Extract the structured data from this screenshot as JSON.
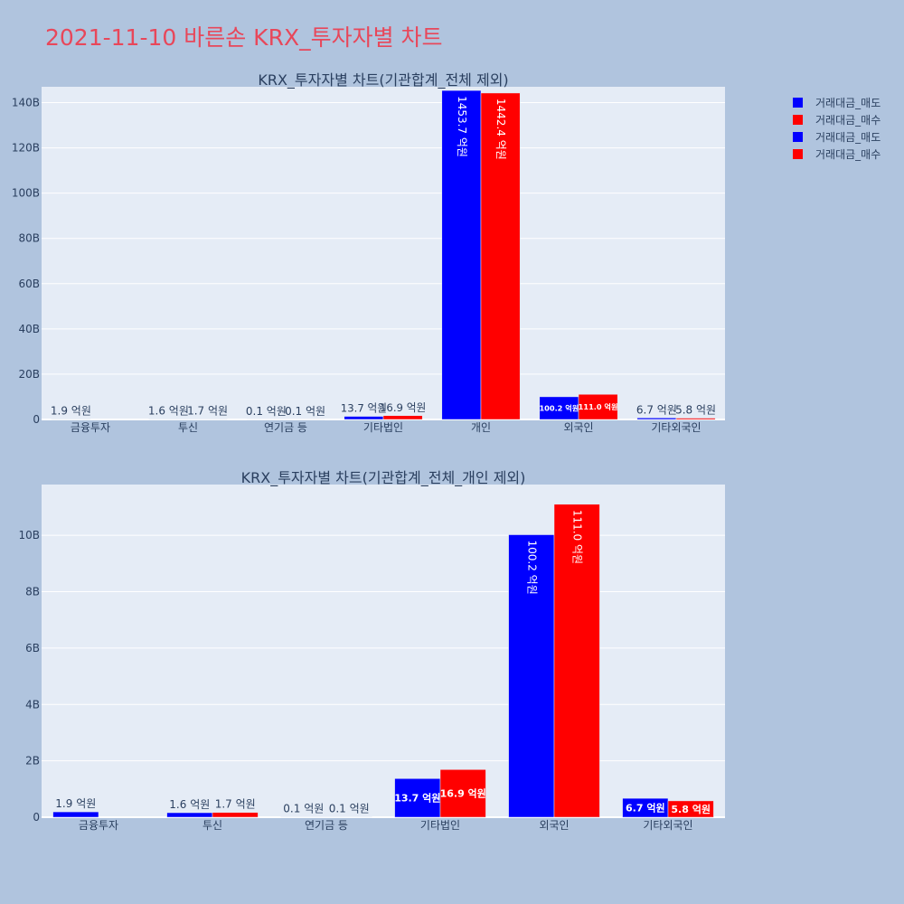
{
  "title": "2021-11-10 바른손 KRX_투자자별 차트",
  "colors": {
    "background": "#b0c4de",
    "plot_bg": "#e5ecf6",
    "title": "#e8475a",
    "sell": "#0000ff",
    "buy": "#ff0000",
    "text": "#2a3f5f"
  },
  "legend": [
    {
      "label": "거래대금_매도",
      "color": "#0000ff"
    },
    {
      "label": "거래대금_매수",
      "color": "#ff0000"
    },
    {
      "label": "거래대금_매도",
      "color": "#0000ff"
    },
    {
      "label": "거래대금_매수",
      "color": "#ff0000"
    }
  ],
  "chart_data": [
    {
      "type": "bar",
      "title": "KRX_투자자별 차트(기관합계_전체 제외)",
      "categories": [
        "금융투자",
        "투신",
        "연기금 등",
        "기타법인",
        "개인",
        "외국인",
        "기타외국인"
      ],
      "series": [
        {
          "name": "거래대금_매도",
          "color": "#0000ff",
          "values": [
            190000000,
            160000000,
            10000000,
            1370000000,
            145370000000,
            10020000000,
            670000000
          ],
          "labels": [
            "1.9 억원",
            "1.6 억원",
            "0.1 억원",
            "13.7 억원",
            "1453.7 억원",
            "100.2 억원",
            "6.7 억원"
          ]
        },
        {
          "name": "거래대금_매수",
          "color": "#ff0000",
          "values": [
            0,
            170000000,
            10000000,
            1690000000,
            144240000000,
            11100000000,
            580000000
          ],
          "labels": [
            "",
            "1.7 억원",
            "0.1 억원",
            "16.9 억원",
            "1442.4 억원",
            "111.0 억원",
            "5.8 억원"
          ]
        }
      ],
      "ylim": [
        0,
        147000000000
      ],
      "yticks": [
        0,
        20000000000,
        40000000000,
        60000000000,
        80000000000,
        100000000000,
        120000000000,
        140000000000
      ],
      "ytick_labels": [
        "0",
        "20B",
        "40B",
        "60B",
        "80B",
        "100B",
        "120B",
        "140B"
      ],
      "grid": true
    },
    {
      "type": "bar",
      "title": "KRX_투자자별 차트(기관합계_전체_개인 제외)",
      "categories": [
        "금융투자",
        "투신",
        "연기금 등",
        "기타법인",
        "외국인",
        "기타외국인"
      ],
      "series": [
        {
          "name": "거래대금_매도",
          "color": "#0000ff",
          "values": [
            190000000,
            160000000,
            10000000,
            1370000000,
            10020000000,
            670000000
          ],
          "labels": [
            "1.9 억원",
            "1.6 억원",
            "0.1 억원",
            "13.7 억원",
            "100.2 억원",
            "6.7 억원"
          ]
        },
        {
          "name": "거래대금_매수",
          "color": "#ff0000",
          "values": [
            0,
            170000000,
            10000000,
            1690000000,
            11100000000,
            580000000
          ],
          "labels": [
            "",
            "1.7 억원",
            "0.1 억원",
            "16.9 억원",
            "111.0 억원",
            "5.8 억원"
          ]
        }
      ],
      "ylim": [
        0,
        11800000000
      ],
      "yticks": [
        0,
        2000000000,
        4000000000,
        6000000000,
        8000000000,
        10000000000
      ],
      "ytick_labels": [
        "0",
        "2B",
        "4B",
        "6B",
        "8B",
        "10B"
      ],
      "grid": true
    }
  ]
}
